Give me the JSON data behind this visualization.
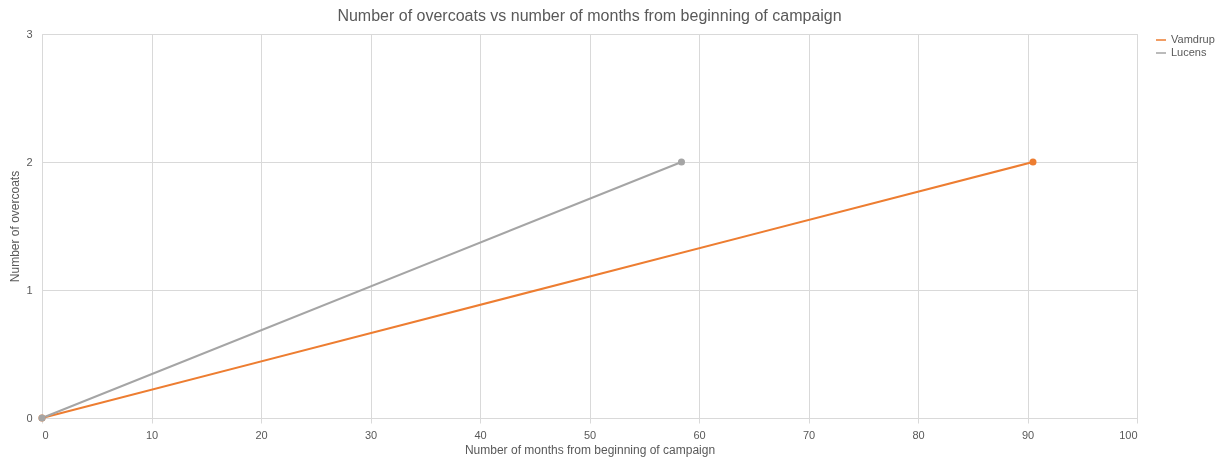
{
  "chart_data": {
    "type": "line",
    "title": "Number of overcoats vs number of months from beginning of campaign",
    "xlabel": "Number of months from beginning of campaign",
    "ylabel": "Number of overcoats",
    "series": [
      {
        "name": "Vamdrup",
        "color": "#ed7d31",
        "x": [
          0,
          90.5
        ],
        "values": [
          0,
          2
        ]
      },
      {
        "name": "Lucens",
        "color": "#a5a5a5",
        "x": [
          0,
          58.4
        ],
        "values": [
          0,
          2
        ]
      }
    ],
    "xlim": [
      0,
      100
    ],
    "xticks": [
      0,
      10,
      20,
      30,
      40,
      50,
      60,
      70,
      80,
      90,
      100
    ],
    "ylim": [
      0,
      3
    ],
    "yticks": [
      0,
      1,
      2,
      3
    ],
    "grid": true,
    "legend": "right",
    "marker": "circle",
    "line_style": "solid"
  }
}
